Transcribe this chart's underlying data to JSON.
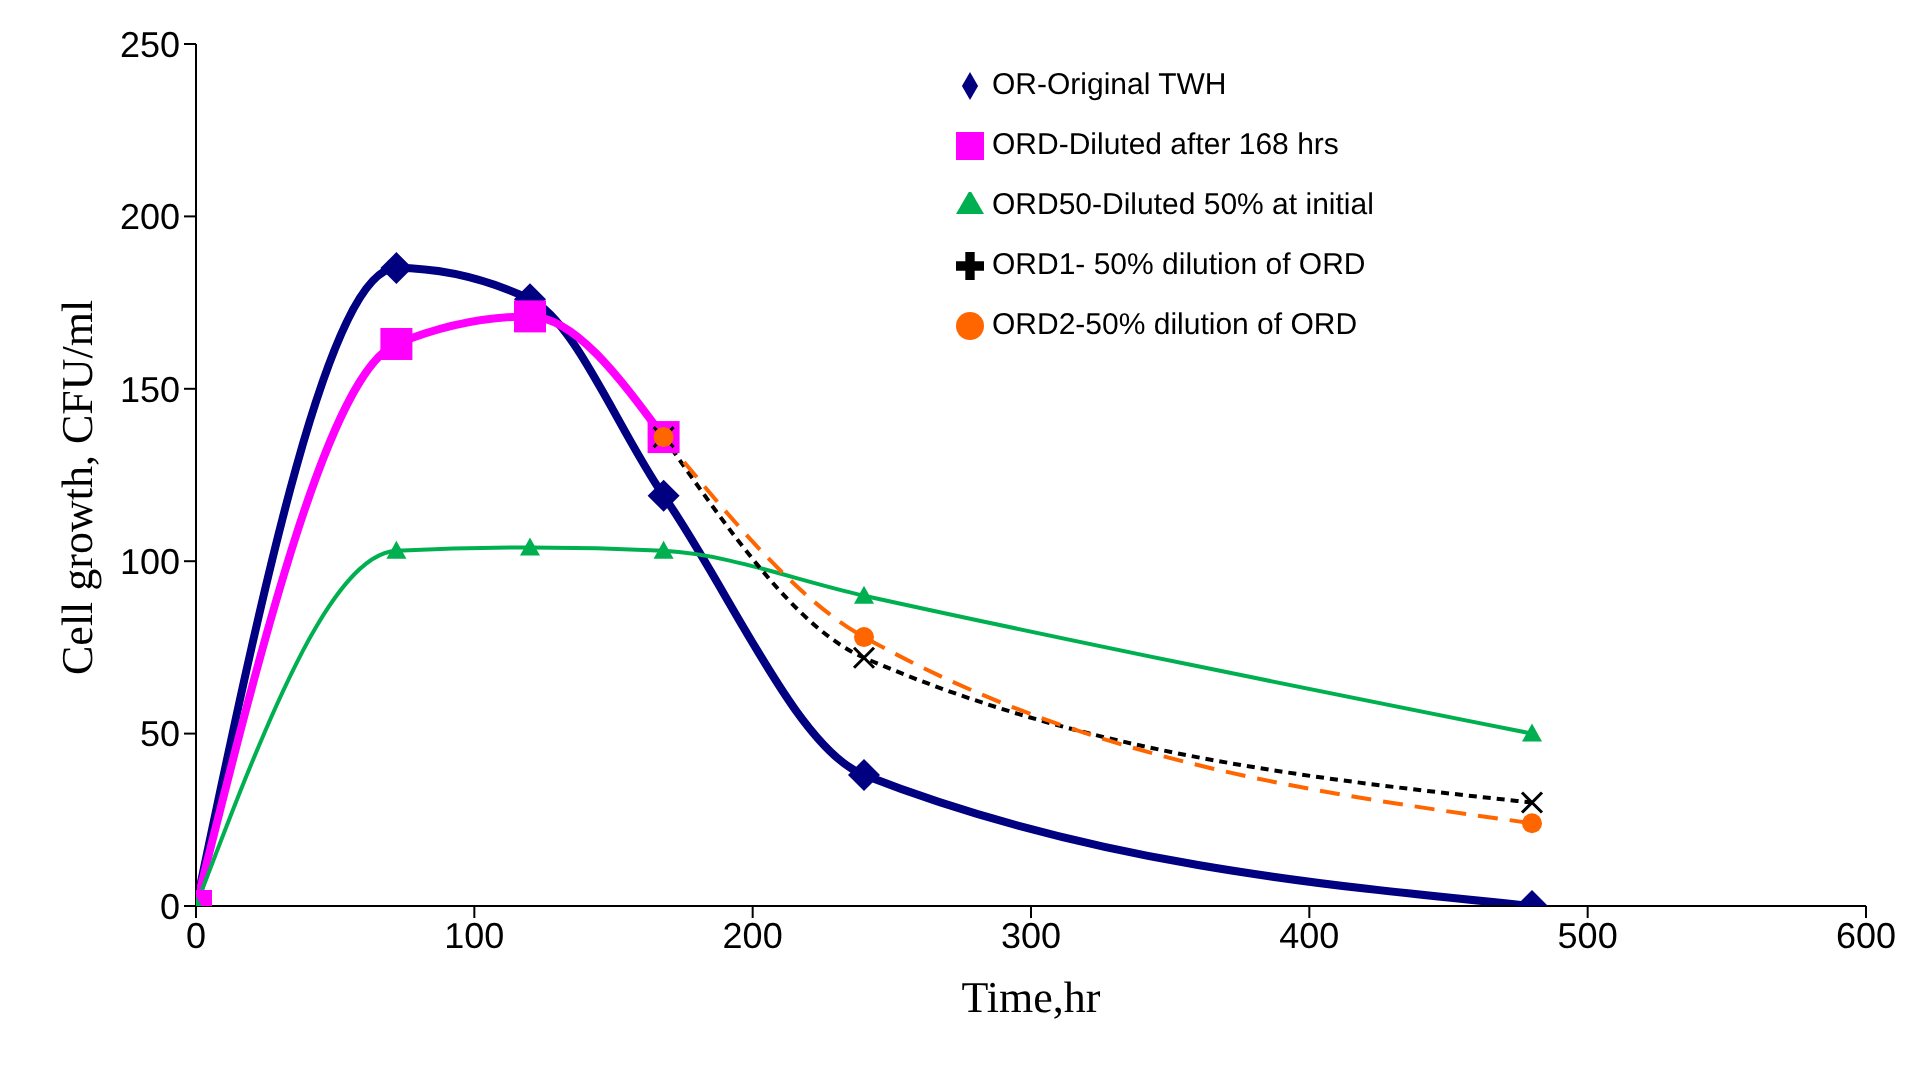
{
  "chart_data": {
    "type": "line",
    "xlabel": "Time,hr",
    "ylabel": "Cell growth, CFU/ml",
    "xlim": [
      0,
      600
    ],
    "xticks": [
      0,
      100,
      200,
      300,
      400,
      500,
      600
    ],
    "ylim": [
      0,
      250
    ],
    "yticks": [
      0,
      50,
      100,
      150,
      200,
      250
    ],
    "grid": false,
    "legend": "top right",
    "series": [
      {
        "name": "OR-Original TWH",
        "color": "#000080",
        "marker": "diamond",
        "line_style": "solid",
        "x": [
          0,
          72,
          120,
          168,
          240,
          480
        ],
        "values": [
          0,
          185,
          176,
          119,
          38,
          0
        ]
      },
      {
        "name": "ORD-Diluted after 168 hrs",
        "color": "#ff00ff",
        "marker": "square",
        "line_style": "solid",
        "x": [
          0,
          72,
          120,
          168
        ],
        "values": [
          0,
          163,
          171,
          136
        ]
      },
      {
        "name": "ORD50-Diluted 50% at initial",
        "color": "#00b050",
        "marker": "triangle",
        "line_style": "solid",
        "x": [
          0,
          72,
          120,
          168,
          240,
          480
        ],
        "values": [
          0,
          103,
          104,
          103,
          90,
          50
        ]
      },
      {
        "name": "ORD1- 50% dilution of ORD",
        "color": "#000000",
        "marker": "cross",
        "line_style": "dotted",
        "x": [
          168,
          240,
          480
        ],
        "values": [
          136,
          72,
          30
        ]
      },
      {
        "name": "ORD2-50% dilution of ORD",
        "color": "#ff6600",
        "marker": "circle",
        "line_style": "dashed",
        "x": [
          168,
          240,
          480
        ],
        "values": [
          136,
          78,
          24
        ]
      }
    ]
  }
}
